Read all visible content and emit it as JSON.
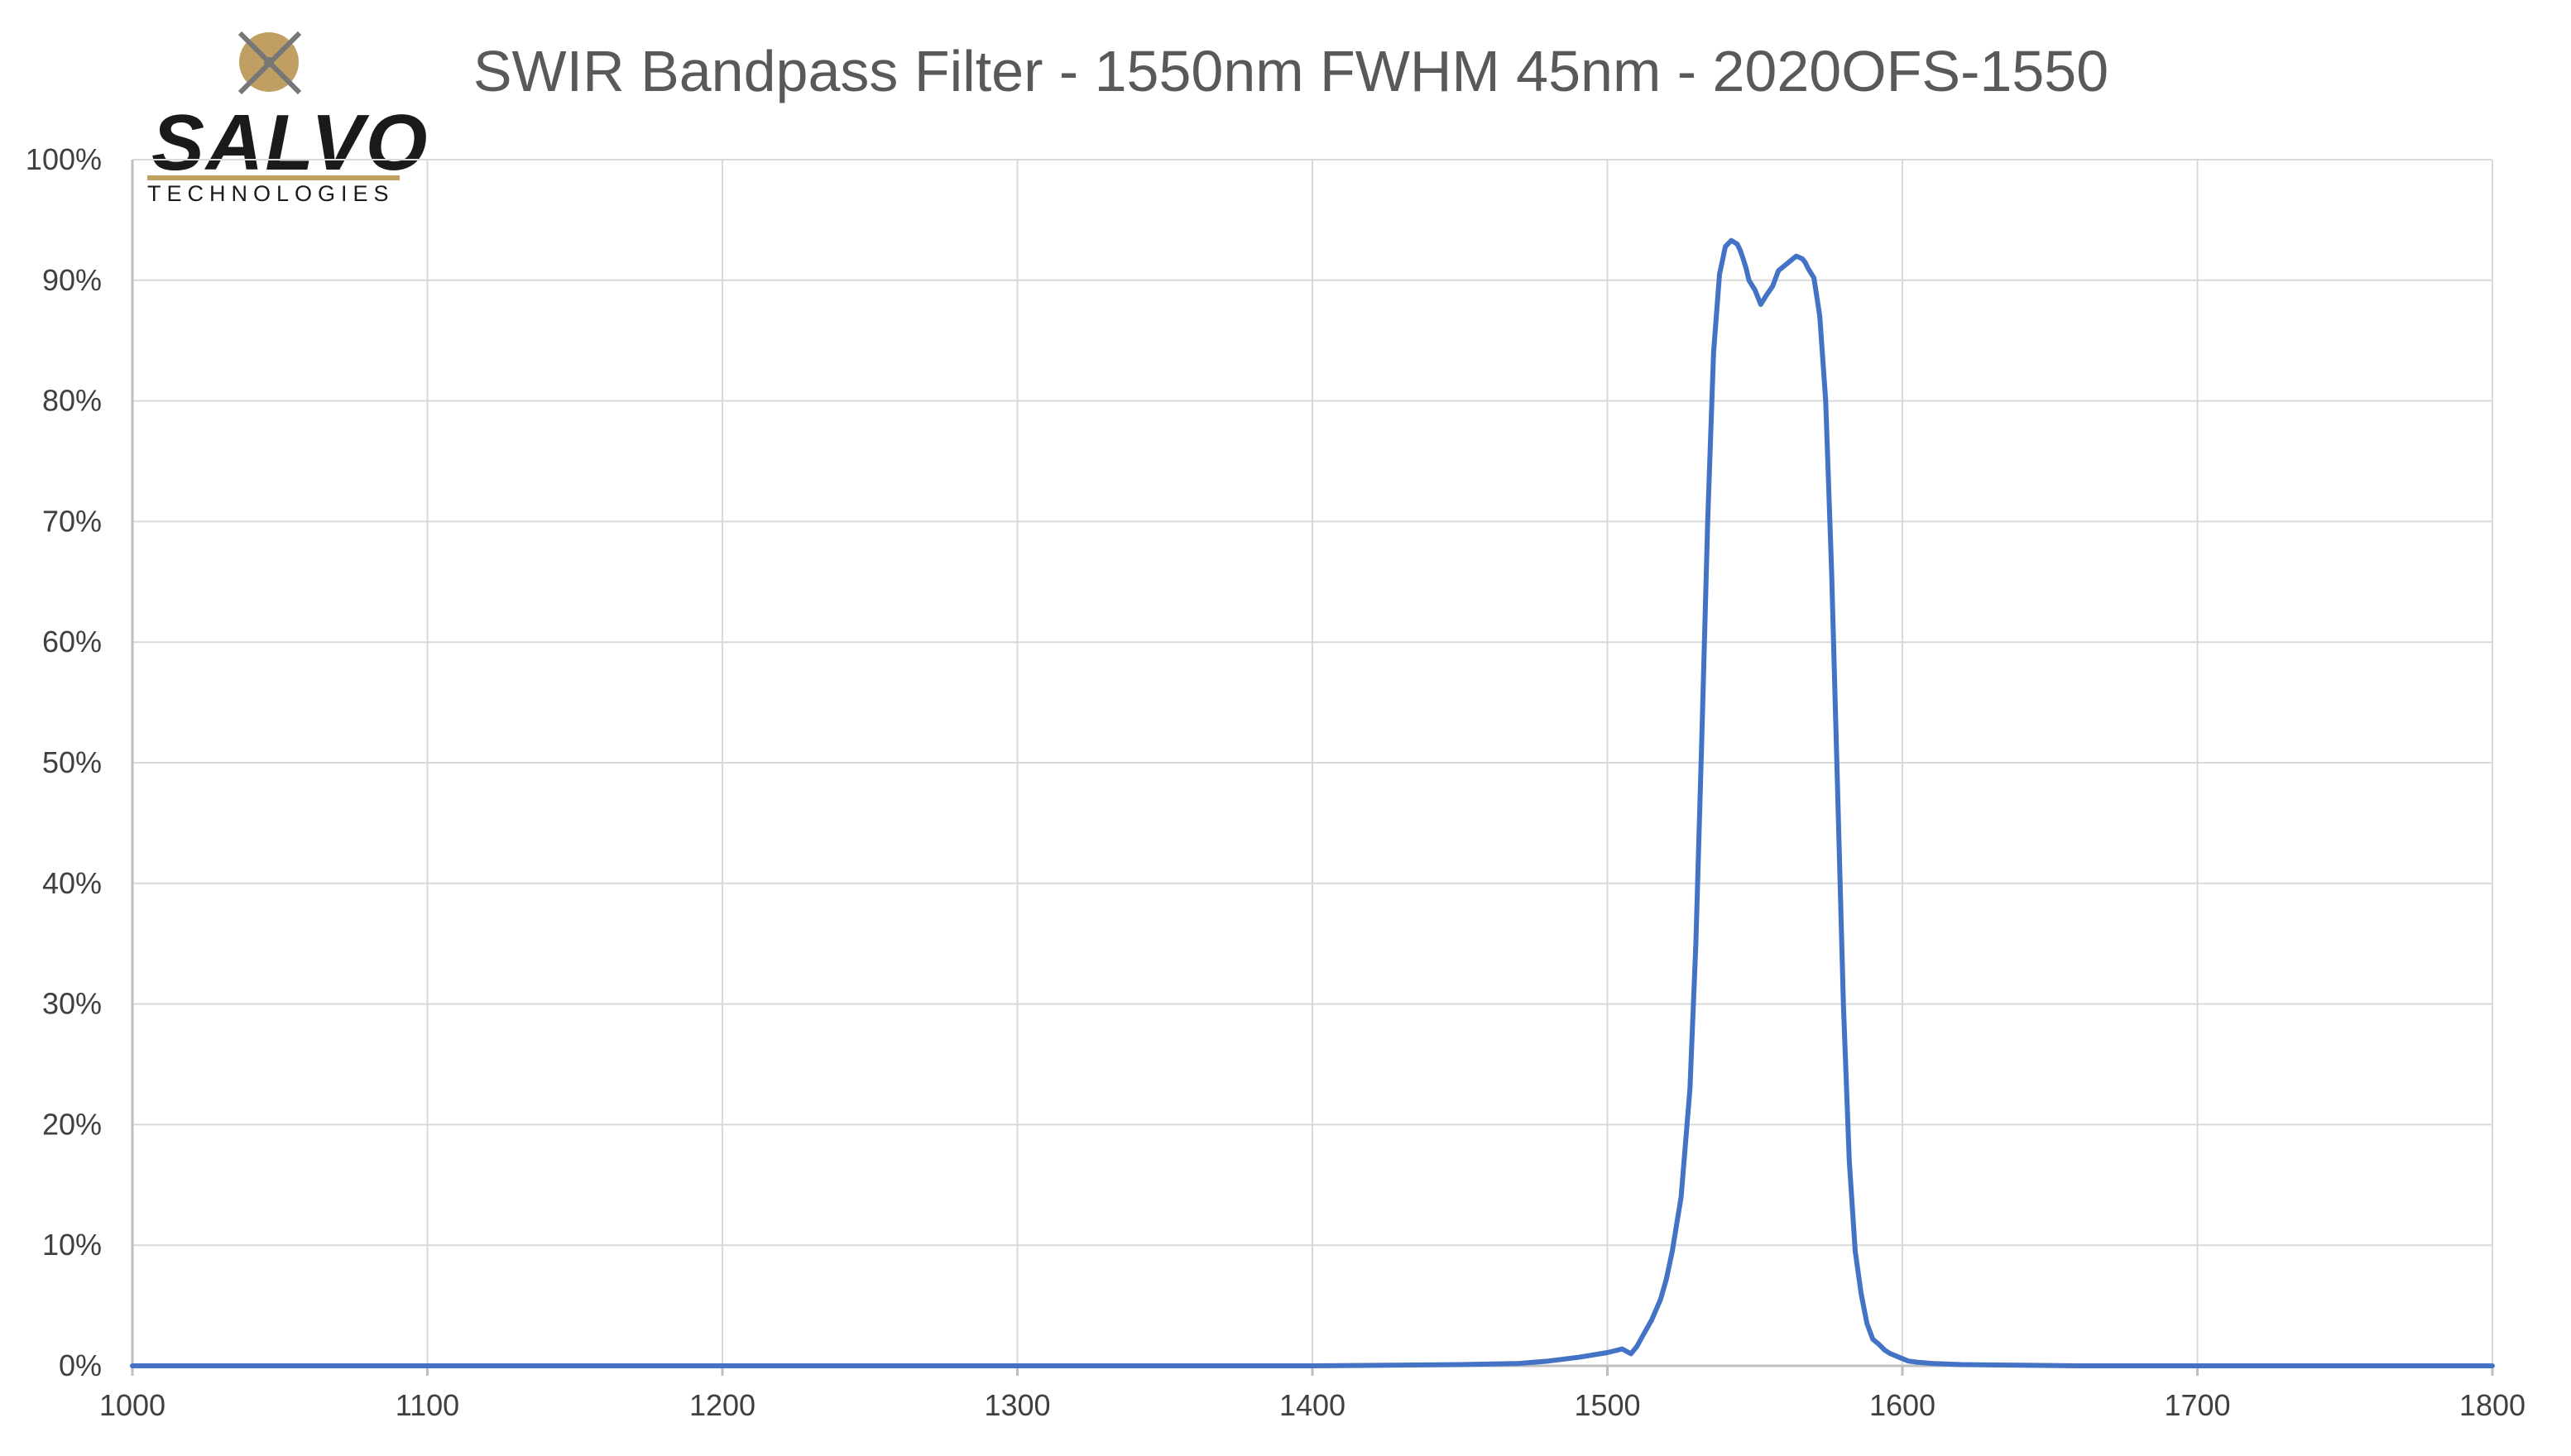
{
  "logo": {
    "name": "SALVO",
    "subtitle": "TECHNOLOGIES",
    "gold": "#c0a062"
  },
  "chart_data": {
    "type": "line",
    "title": "SWIR Bandpass Filter - 1550nm FWHM 45nm - 2020OFS-1550",
    "xlabel": "",
    "ylabel": "",
    "xlim": [
      1000,
      1800
    ],
    "ylim": [
      0,
      100
    ],
    "x_ticks": [
      "1000",
      "1100",
      "1200",
      "1300",
      "1400",
      "1500",
      "1600",
      "1700",
      "1800"
    ],
    "y_ticks": [
      "0%",
      "10%",
      "20%",
      "30%",
      "40%",
      "50%",
      "60%",
      "70%",
      "80%",
      "90%",
      "100%"
    ],
    "grid": true,
    "legend": "none",
    "series": [
      {
        "color": "#4472c4",
        "x": [
          1000,
          1400,
          1450,
          1470,
          1480,
          1490,
          1500,
          1505,
          1508,
          1510,
          1512,
          1515,
          1518,
          1520,
          1522,
          1525,
          1528,
          1530,
          1532,
          1534,
          1536,
          1538,
          1540,
          1542,
          1544,
          1545,
          1546,
          1547,
          1548,
          1550,
          1552,
          1554,
          1556,
          1558,
          1560,
          1562,
          1564,
          1566,
          1567,
          1568,
          1570,
          1572,
          1574,
          1576,
          1578,
          1580,
          1582,
          1584,
          1586,
          1588,
          1590,
          1592,
          1594,
          1596,
          1598,
          1600,
          1602,
          1605,
          1610,
          1620,
          1640,
          1660,
          1700,
          1800
        ],
        "values": [
          0,
          0,
          0.1,
          0.2,
          0.4,
          0.7,
          1.1,
          1.4,
          1.0,
          1.6,
          2.5,
          3.8,
          5.5,
          7.2,
          9.5,
          14,
          23,
          35,
          52,
          70,
          84,
          90.5,
          92.8,
          93.3,
          93.0,
          92.5,
          91.8,
          91.0,
          90.0,
          89.2,
          88.0,
          88.8,
          89.5,
          90.8,
          91.2,
          91.6,
          92.0,
          91.8,
          91.5,
          91.0,
          90.2,
          87,
          80,
          66,
          48,
          30,
          17,
          9.5,
          6,
          3.5,
          2.2,
          1.8,
          1.3,
          1.0,
          0.8,
          0.6,
          0.4,
          0.3,
          0.2,
          0.1,
          0.05,
          0,
          0,
          0
        ]
      }
    ]
  }
}
